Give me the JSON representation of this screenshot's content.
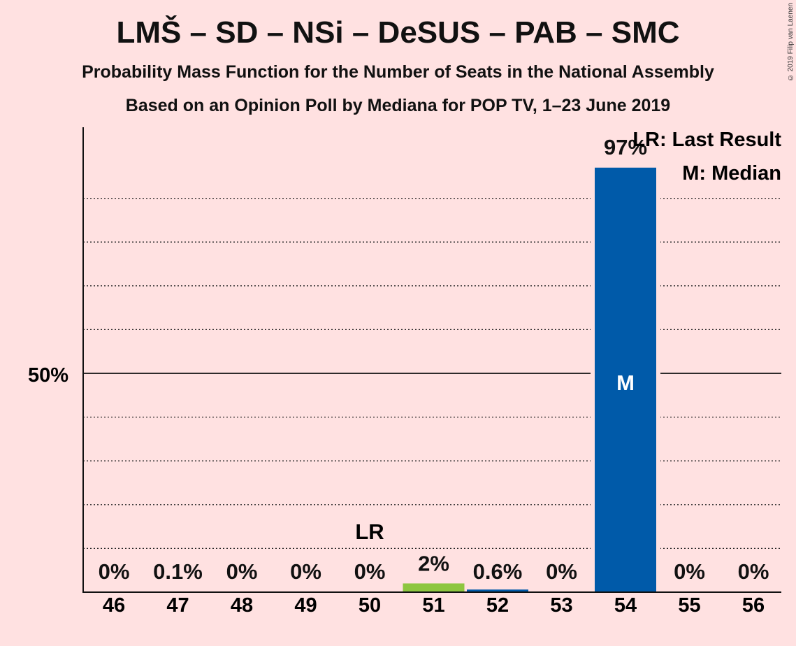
{
  "title": "LMŠ – SD – NSi – DeSUS – PAB – SMC",
  "subtitle": "Probability Mass Function for the Number of Seats in the National Assembly",
  "subtitle2": "Based on an Opinion Poll by Mediana for POP TV, 1–23 June 2019",
  "copyright": "© 2019 Filip van Laenen",
  "chart_data": {
    "type": "bar",
    "categories": [
      "46",
      "47",
      "48",
      "49",
      "50",
      "51",
      "52",
      "53",
      "54",
      "55",
      "56"
    ],
    "values": [
      0,
      0.1,
      0,
      0,
      0,
      2,
      0.6,
      0,
      97,
      0,
      0
    ],
    "value_labels": [
      "0%",
      "0.1%",
      "0%",
      "0%",
      "0%",
      "2%",
      "0.6%",
      "0%",
      "97%",
      "0%",
      "0%"
    ],
    "bar_colors": [
      "#005aa9",
      "#005aa9",
      "#005aa9",
      "#005aa9",
      "#005aa9",
      "#8dc63f",
      "#005aa9",
      "#005aa9",
      "#005aa9",
      "#005aa9",
      "#005aa9"
    ],
    "ylim": [
      0,
      105
    ],
    "ytick_label": "50%",
    "ytick_value": 50,
    "gridlines": [
      10,
      20,
      30,
      40,
      60,
      70,
      80,
      90
    ],
    "last_result": {
      "category": "50",
      "label": "LR"
    },
    "median": {
      "category": "54",
      "label": "M"
    },
    "legend": [
      "LR: Last Result",
      "M: Median"
    ],
    "legend_position": "top-right"
  }
}
